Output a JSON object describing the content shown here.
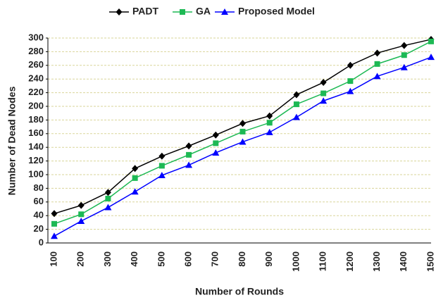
{
  "chart_data": {
    "type": "line",
    "x_label": "Number of Rounds",
    "y_label": "Number of Dead  Nodes",
    "categories": [
      "100",
      "200",
      "300",
      "400",
      "500",
      "600",
      "700",
      "800",
      "900",
      "1000",
      "1100",
      "1200",
      "1300",
      "1400",
      "1500"
    ],
    "series": [
      {
        "name": "PADT",
        "color": "#000000",
        "marker": "diamond",
        "values": [
          43,
          55,
          74,
          109,
          127,
          142,
          158,
          175,
          186,
          217,
          235,
          260,
          278,
          289,
          298
        ]
      },
      {
        "name": "GA",
        "color": "#1db954",
        "marker": "square",
        "values": [
          28,
          42,
          65,
          95,
          113,
          129,
          146,
          163,
          176,
          203,
          219,
          237,
          262,
          275,
          295
        ]
      },
      {
        "name": "Proposed Model",
        "color": "#0000ff",
        "marker": "triangle",
        "values": [
          10,
          32,
          52,
          75,
          99,
          114,
          132,
          148,
          162,
          184,
          208,
          222,
          244,
          257,
          272
        ]
      }
    ],
    "ylim": [
      0,
      300
    ],
    "yticks": [
      0,
      20,
      40,
      60,
      80,
      100,
      120,
      140,
      160,
      180,
      200,
      220,
      240,
      260,
      280,
      300
    ],
    "grid": true,
    "legend": "top"
  }
}
